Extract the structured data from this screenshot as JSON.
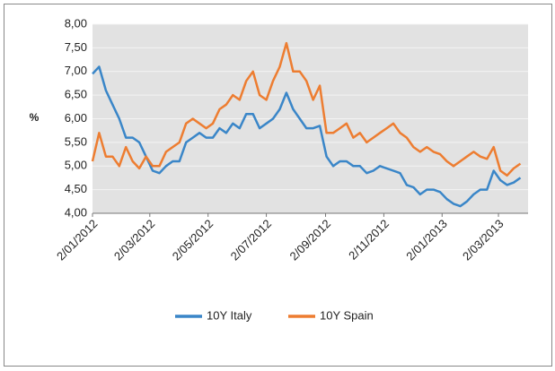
{
  "chart_data": {
    "type": "line",
    "y_label": "%",
    "x": [
      "2012-01-02",
      "2012-01-09",
      "2012-01-16",
      "2012-01-23",
      "2012-01-30",
      "2012-02-06",
      "2012-02-13",
      "2012-02-20",
      "2012-02-27",
      "2012-03-05",
      "2012-03-12",
      "2012-03-19",
      "2012-03-26",
      "2012-04-02",
      "2012-04-09",
      "2012-04-16",
      "2012-04-23",
      "2012-04-30",
      "2012-05-07",
      "2012-05-14",
      "2012-05-21",
      "2012-05-28",
      "2012-06-04",
      "2012-06-11",
      "2012-06-18",
      "2012-06-25",
      "2012-07-02",
      "2012-07-09",
      "2012-07-16",
      "2012-07-23",
      "2012-07-30",
      "2012-08-06",
      "2012-08-13",
      "2012-08-20",
      "2012-08-27",
      "2012-09-03",
      "2012-09-10",
      "2012-09-17",
      "2012-09-24",
      "2012-10-01",
      "2012-10-08",
      "2012-10-15",
      "2012-10-22",
      "2012-10-29",
      "2012-11-05",
      "2012-11-12",
      "2012-11-19",
      "2012-11-26",
      "2012-12-03",
      "2012-12-10",
      "2012-12-17",
      "2012-12-24",
      "2012-12-31",
      "2013-01-07",
      "2013-01-14",
      "2013-01-21",
      "2013-01-28",
      "2013-02-04",
      "2013-02-11",
      "2013-02-18",
      "2013-02-25",
      "2013-03-04",
      "2013-03-11",
      "2013-03-18",
      "2013-03-25"
    ],
    "series": [
      {
        "name": "10Y Italy",
        "color": "#3a86c8",
        "values": [
          6.95,
          7.1,
          6.6,
          6.3,
          6.0,
          5.6,
          5.6,
          5.5,
          5.2,
          4.9,
          4.85,
          5.0,
          5.1,
          5.1,
          5.5,
          5.6,
          5.7,
          5.6,
          5.6,
          5.8,
          5.7,
          5.9,
          5.8,
          6.1,
          6.1,
          5.8,
          5.9,
          6.0,
          6.2,
          6.55,
          6.2,
          6.0,
          5.8,
          5.8,
          5.85,
          5.2,
          5.0,
          5.1,
          5.1,
          5.0,
          5.0,
          4.85,
          4.9,
          5.0,
          4.95,
          4.9,
          4.85,
          4.6,
          4.55,
          4.4,
          4.5,
          4.5,
          4.45,
          4.3,
          4.2,
          4.15,
          4.25,
          4.4,
          4.5,
          4.5,
          4.9,
          4.7,
          4.6,
          4.65,
          4.75
        ]
      },
      {
        "name": "10Y Spain",
        "color": "#ed7d31",
        "values": [
          5.1,
          5.7,
          5.2,
          5.2,
          5.0,
          5.4,
          5.1,
          4.95,
          5.2,
          5.0,
          5.0,
          5.3,
          5.4,
          5.5,
          5.9,
          6.0,
          5.9,
          5.8,
          5.9,
          6.2,
          6.3,
          6.5,
          6.4,
          6.8,
          7.0,
          6.5,
          6.4,
          6.8,
          7.1,
          7.6,
          7.0,
          7.0,
          6.8,
          6.4,
          6.7,
          5.7,
          5.7,
          5.8,
          5.9,
          5.6,
          5.7,
          5.5,
          5.6,
          5.7,
          5.8,
          5.9,
          5.7,
          5.6,
          5.4,
          5.3,
          5.4,
          5.3,
          5.25,
          5.1,
          5.0,
          5.1,
          5.2,
          5.3,
          5.2,
          5.15,
          5.4,
          4.9,
          4.8,
          4.95,
          5.05
        ]
      }
    ],
    "xlim": [
      "2012-01-02",
      "2013-04-02"
    ],
    "xticks": [
      {
        "value": "2012-01-02",
        "label": "2/01/2012"
      },
      {
        "value": "2012-03-02",
        "label": "2/03/2012"
      },
      {
        "value": "2012-05-02",
        "label": "2/05/2012"
      },
      {
        "value": "2012-07-02",
        "label": "2/07/2012"
      },
      {
        "value": "2012-09-02",
        "label": "2/09/2012"
      },
      {
        "value": "2012-11-02",
        "label": "2/11/2012"
      },
      {
        "value": "2013-01-02",
        "label": "2/01/2013"
      },
      {
        "value": "2013-03-02",
        "label": "2/03/2013"
      }
    ],
    "ylim": [
      4,
      8
    ],
    "yticks": [
      {
        "value": 4,
        "label": "4,00"
      },
      {
        "value": 4.5,
        "label": "4,50"
      },
      {
        "value": 5,
        "label": "5,00"
      },
      {
        "value": 5.5,
        "label": "5,50"
      },
      {
        "value": 6,
        "label": "6,00"
      },
      {
        "value": 6.5,
        "label": "6,50"
      },
      {
        "value": 7,
        "label": "7,00"
      },
      {
        "value": 7.5,
        "label": "7,50"
      },
      {
        "value": 8,
        "label": "8,00"
      }
    ],
    "grid": true,
    "legend": "bottom"
  }
}
